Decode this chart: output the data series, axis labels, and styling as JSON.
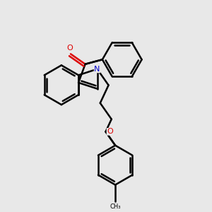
{
  "background_color": "#e8e8e8",
  "bond_color": "#000000",
  "nitrogen_color": "#0000cc",
  "oxygen_color": "#dd0000",
  "line_width": 1.8,
  "dbo": 0.012,
  "figsize": [
    3.0,
    3.0
  ],
  "dpi": 100,
  "xlim": [
    0,
    1
  ],
  "ylim": [
    0,
    1
  ]
}
